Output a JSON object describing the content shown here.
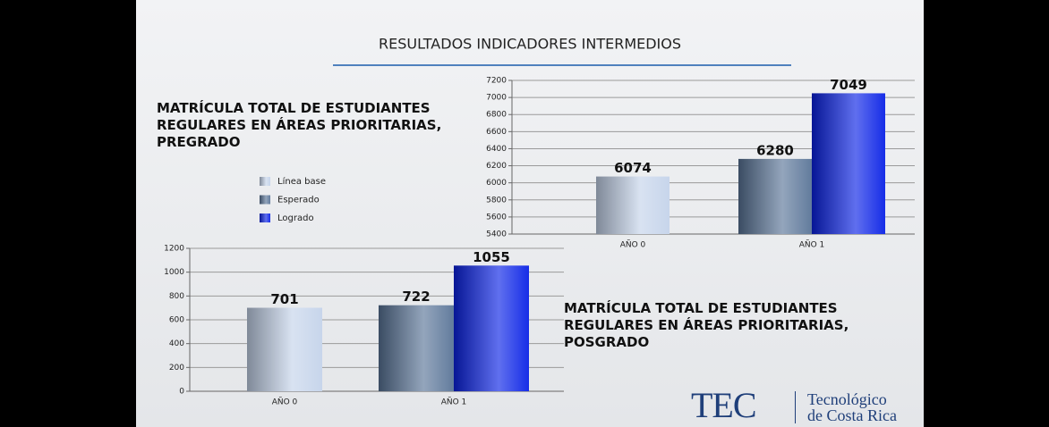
{
  "slide": {
    "title": "RESULTADOS INDICADORES INTERMEDIOS",
    "logo_mark": "TEC",
    "logo_text_1": "Tecnológico",
    "logo_text_2": "de Costa Rica"
  },
  "chart_data": [
    {
      "type": "bar",
      "title": "MATRÍCULA TOTAL DE ESTUDIANTES REGULARES EN ÁREAS PRIORITARIAS, PREGRADO",
      "categories": [
        "AÑO 0",
        "AÑO 1"
      ],
      "series": [
        {
          "name": "Línea base",
          "color": "#c4d3ea",
          "values": [
            6074,
            null
          ]
        },
        {
          "name": "Esperado",
          "color": "#5a7598",
          "values": [
            null,
            6280
          ]
        },
        {
          "name": "Logrado",
          "color": "#0a22e6",
          "values": [
            null,
            7049
          ]
        }
      ],
      "ylim": [
        5400,
        7200
      ],
      "yticks": [
        5400,
        5600,
        5800,
        6000,
        6200,
        6400,
        6600,
        6800,
        7000,
        7200
      ],
      "grid": true,
      "legend": true
    },
    {
      "type": "bar",
      "title": "MATRÍCULA TOTAL DE ESTUDIANTES REGULARES EN ÁREAS PRIORITARIAS, POSGRADO",
      "categories": [
        "AÑO 0",
        "AÑO 1"
      ],
      "series": [
        {
          "color": "#c4d3ea",
          "values": [
            701,
            null
          ]
        },
        {
          "color": "#5a7598",
          "values": [
            null,
            722
          ]
        },
        {
          "color": "#0a22e6",
          "values": [
            null,
            1055
          ]
        }
      ],
      "ylim": [
        0,
        1200
      ],
      "yticks": [
        0,
        200,
        400,
        600,
        800,
        1000,
        1200
      ],
      "grid": true,
      "legend": false
    }
  ]
}
